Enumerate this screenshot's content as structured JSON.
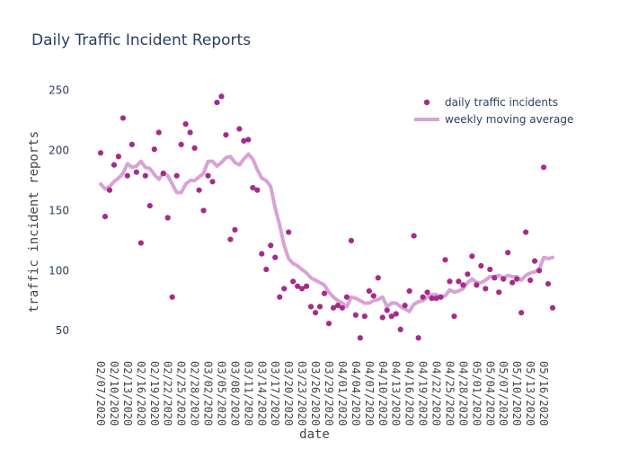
{
  "chart_data": {
    "type": "scatter+line",
    "title": "Daily Traffic Incident Reports",
    "xlabel": "date",
    "ylabel": "traffic incident reports",
    "x_start": "2020-02-07",
    "x_end": "2020-05-19",
    "xtick_labels": [
      "02/07/2020",
      "02/10/2020",
      "02/13/2020",
      "02/16/2020",
      "02/19/2020",
      "02/22/2020",
      "02/25/2020",
      "02/28/2020",
      "03/02/2020",
      "03/05/2020",
      "03/08/2020",
      "03/11/2020",
      "03/14/2020",
      "03/17/2020",
      "03/20/2020",
      "03/23/2020",
      "03/26/2020",
      "03/29/2020",
      "04/01/2020",
      "04/04/2020",
      "04/07/2020",
      "04/10/2020",
      "04/13/2020",
      "04/16/2020",
      "04/19/2020",
      "04/22/2020",
      "04/25/2020",
      "04/28/2020",
      "05/01/2020",
      "05/04/2020",
      "05/07/2020",
      "05/10/2020",
      "05/13/2020",
      "05/16/2020"
    ],
    "yticks": [
      50,
      100,
      150,
      200,
      250
    ],
    "ylim": [
      30,
      258
    ],
    "grid": false,
    "legend_position": "top-right",
    "series": [
      {
        "name": "daily traffic incidents",
        "kind": "markers",
        "color": "#a72a8a",
        "values": [
          198,
          145,
          167,
          188,
          195,
          227,
          179,
          205,
          182,
          123,
          179,
          154,
          201,
          215,
          181,
          144,
          78,
          179,
          205,
          222,
          215,
          202,
          167,
          150,
          179,
          174,
          240,
          245,
          213,
          126,
          134,
          218,
          208,
          209,
          169,
          167,
          114,
          101,
          121,
          111,
          78,
          85,
          132,
          91,
          87,
          85,
          87,
          70,
          65,
          70,
          81,
          56,
          69,
          71,
          69,
          78,
          125,
          63,
          44,
          62,
          83,
          79,
          94,
          61,
          67,
          62,
          64,
          51,
          71,
          83,
          129,
          44,
          78,
          82,
          77,
          77,
          78,
          109,
          91,
          62,
          91,
          88,
          97,
          112,
          88,
          104,
          85,
          101,
          94,
          82,
          93,
          115,
          90,
          93,
          65,
          132,
          92,
          108,
          100,
          186,
          89,
          69
        ]
      },
      {
        "name": "weekly moving average",
        "kind": "line",
        "color": "#d9a2d5",
        "values": [
          172,
          168,
          170,
          174,
          177,
          181,
          189,
          186,
          187,
          191,
          186,
          185,
          180,
          176,
          181,
          179,
          172,
          165,
          165,
          172,
          175,
          175,
          178,
          181,
          191,
          191,
          187,
          190,
          194,
          195,
          190,
          188,
          193,
          197,
          193,
          184,
          177,
          175,
          170,
          152,
          138,
          121,
          110,
          106,
          104,
          101,
          98,
          94,
          92,
          90,
          88,
          82,
          78,
          75,
          73,
          70,
          78,
          77,
          75,
          73,
          73,
          75,
          76,
          78,
          70,
          73,
          73,
          70,
          68,
          66,
          72,
          74,
          75,
          78,
          80,
          80,
          78,
          79,
          84,
          82,
          83,
          85,
          90,
          93,
          90,
          90,
          92,
          95,
          95,
          96,
          94,
          96,
          95,
          95,
          92,
          96,
          98,
          99,
          101,
          111,
          110,
          111
        ]
      }
    ]
  }
}
